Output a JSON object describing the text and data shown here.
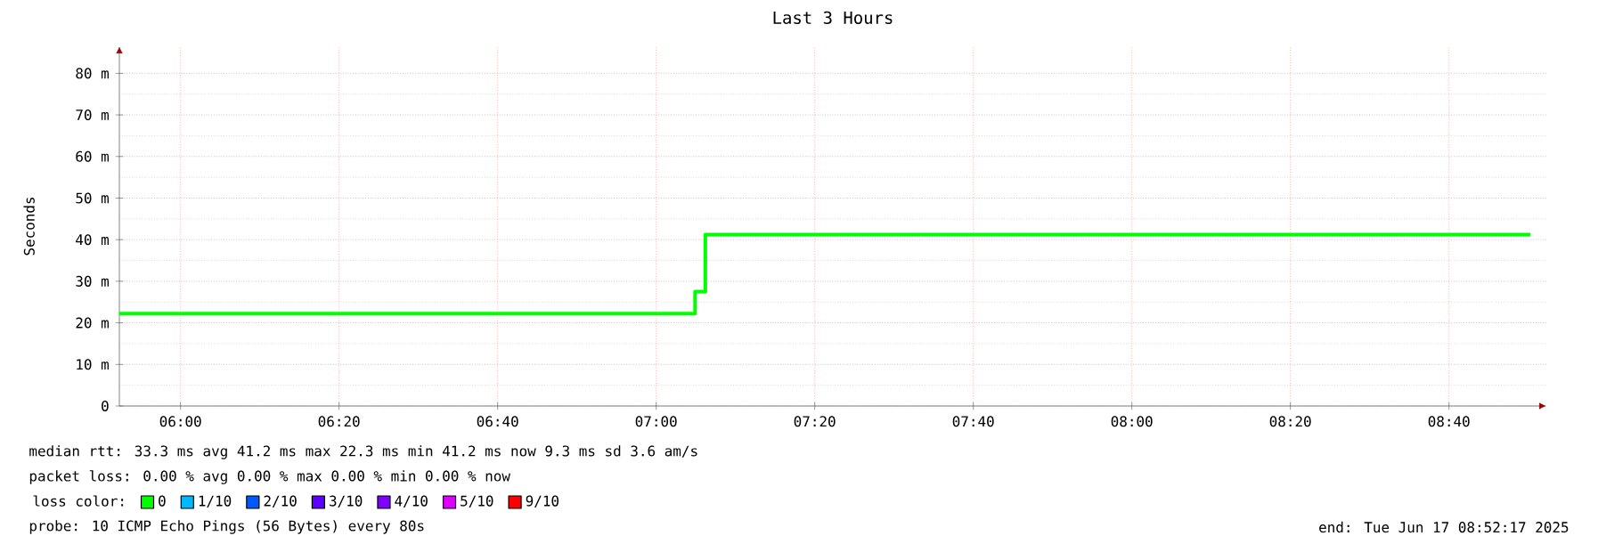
{
  "chart_data": {
    "type": "step",
    "title": "Last 3 Hours",
    "ylabel": "Seconds",
    "x": [
      5.8714,
      7.0817,
      7.1033,
      8.838
    ],
    "series": [
      {
        "name": "0",
        "color": "#00ff00",
        "values": [
          22.2,
          27.5,
          41.2,
          41.2
        ]
      },
      {
        "name": "1/10",
        "color": "#00b8ff",
        "values": [
          null,
          null,
          null,
          null
        ]
      },
      {
        "name": "2/10",
        "color": "#0059ff",
        "values": [
          null,
          null,
          null,
          null
        ]
      },
      {
        "name": "3/10",
        "color": "#5e00ff",
        "values": [
          null,
          null,
          null,
          null
        ]
      },
      {
        "name": "4/10",
        "color": "#7e00ff",
        "values": [
          null,
          null,
          null,
          null
        ]
      },
      {
        "name": "5/10",
        "color": "#dd00ff",
        "values": [
          null,
          null,
          null,
          null
        ]
      },
      {
        "name": "9/10",
        "color": "#ff0000",
        "values": [
          null,
          null,
          null,
          null
        ]
      }
    ],
    "legend": "bottom",
    "legend_title": "loss color:",
    "xlim": [
      5.8714,
      8.8714
    ],
    "xticks": [
      {
        "value": 6,
        "label": "06:00"
      },
      {
        "value": 6.3333,
        "label": "06:20"
      },
      {
        "value": 6.6667,
        "label": "06:40"
      },
      {
        "value": 7,
        "label": "07:00"
      },
      {
        "value": 7.3333,
        "label": "07:20"
      },
      {
        "value": 7.6667,
        "label": "07:40"
      },
      {
        "value": 8,
        "label": "08:00"
      },
      {
        "value": 8.3333,
        "label": "08:20"
      },
      {
        "value": 8.6667,
        "label": "08:40"
      }
    ],
    "ylim": [
      0,
      86.5
    ],
    "yticks": [
      0,
      {
        "value": 10,
        "label": "10 m"
      },
      {
        "value": 20,
        "label": "20 m"
      },
      {
        "value": 30,
        "label": "30 m"
      },
      {
        "value": 40,
        "label": "40 m"
      },
      {
        "value": 50,
        "label": "50 m"
      },
      {
        "value": 60,
        "label": "60 m"
      },
      {
        "value": 70,
        "label": "70 m"
      },
      {
        "value": 80,
        "label": "80 m"
      }
    ],
    "grid": true,
    "annotations": [
      "median rtt:  33.3 ms avg  41.2 ms max  22.3 ms min  41.2 ms now  9.3 ms sd  3.6   am/s",
      "packet loss: 0.00 % avg  0.00 % max  0.00 % min  0.00 % now",
      "probe:       10 ICMP Echo Pings (56 Bytes) every 80s",
      "end: Tue Jun 17 08:52:17 2025"
    ]
  }
}
